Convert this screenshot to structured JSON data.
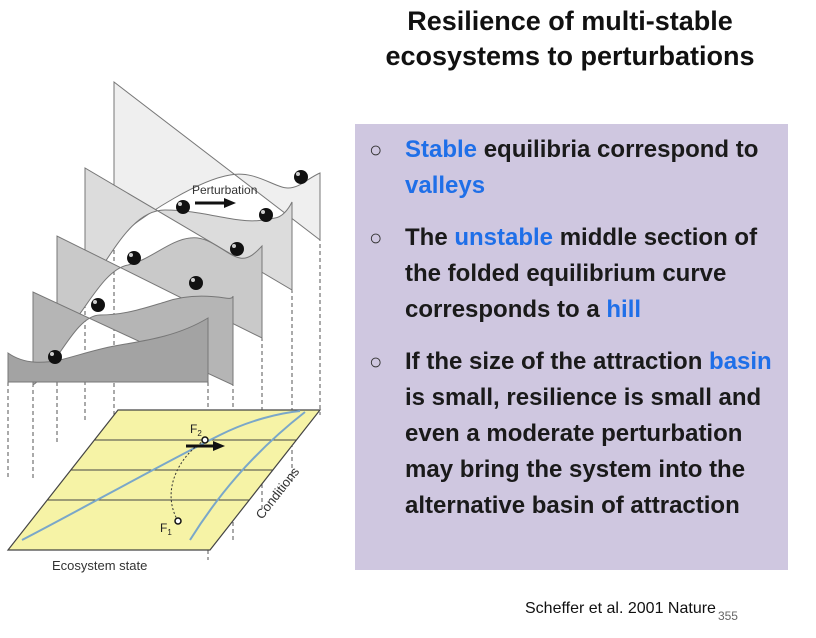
{
  "slide": {
    "title_line1": "Resilience of multi-stable",
    "title_line2": "ecosystems to perturbations",
    "citation": "Scheffer et al. 2001 Nature",
    "page_number": "355"
  },
  "figure": {
    "perturbation_label": "Perturbation",
    "f1_label": "F",
    "f1_sub": "1",
    "f2_label": "F",
    "f2_sub": "2",
    "conditions_label": "Conditions",
    "ecosystem_state_label": "Ecosystem state",
    "colors": {
      "plane_fill": "#f6f3a6",
      "curve": "#7aa7c9",
      "arrow": "#111111",
      "ball": "#111111"
    }
  },
  "bullets": [
    {
      "segments": [
        {
          "text": "Stable",
          "blue": true
        },
        {
          "text": " equilibria correspond to ",
          "blue": false
        },
        {
          "text": "valleys",
          "blue": true
        }
      ]
    },
    {
      "segments": [
        {
          "text": "The ",
          "blue": false
        },
        {
          "text": "unstable",
          "blue": true
        },
        {
          "text": " middle section of the folded equilibrium curve corresponds to a ",
          "blue": false
        },
        {
          "text": "hill",
          "blue": true
        }
      ]
    },
    {
      "segments": [
        {
          "text": "If the size of the attraction ",
          "blue": false
        },
        {
          "text": "basin",
          "blue": true
        },
        {
          "text": " is small, resilience is small and even a moderate perturbation may bring the system into the alternative basin of attraction",
          "blue": false
        }
      ]
    }
  ],
  "colors": {
    "panel_bg": "#cfc7e0",
    "accent_blue": "#1f6fe8"
  }
}
